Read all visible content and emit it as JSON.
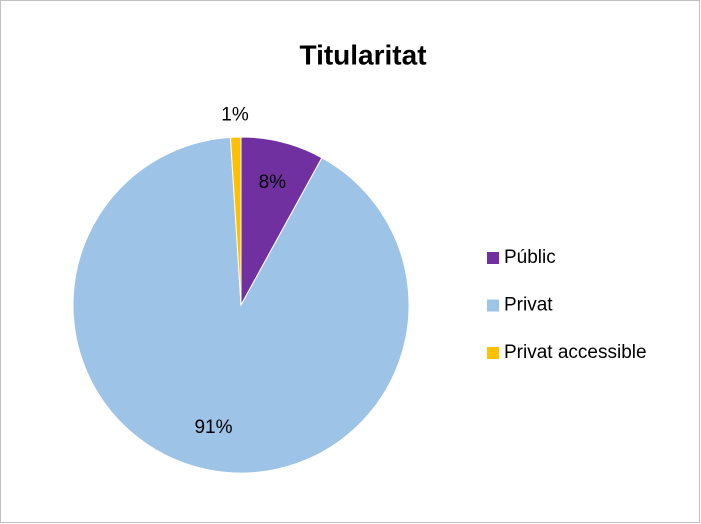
{
  "chart_data": {
    "type": "pie",
    "title": "Titularitat",
    "categories": [
      "Públic",
      "Privat",
      "Privat accessible"
    ],
    "values": [
      8,
      91,
      1
    ],
    "value_labels": [
      "8%",
      "91%",
      "1%"
    ],
    "colors": [
      "#7030a0",
      "#9dc3e6",
      "#ffc000"
    ],
    "legend": "right"
  }
}
